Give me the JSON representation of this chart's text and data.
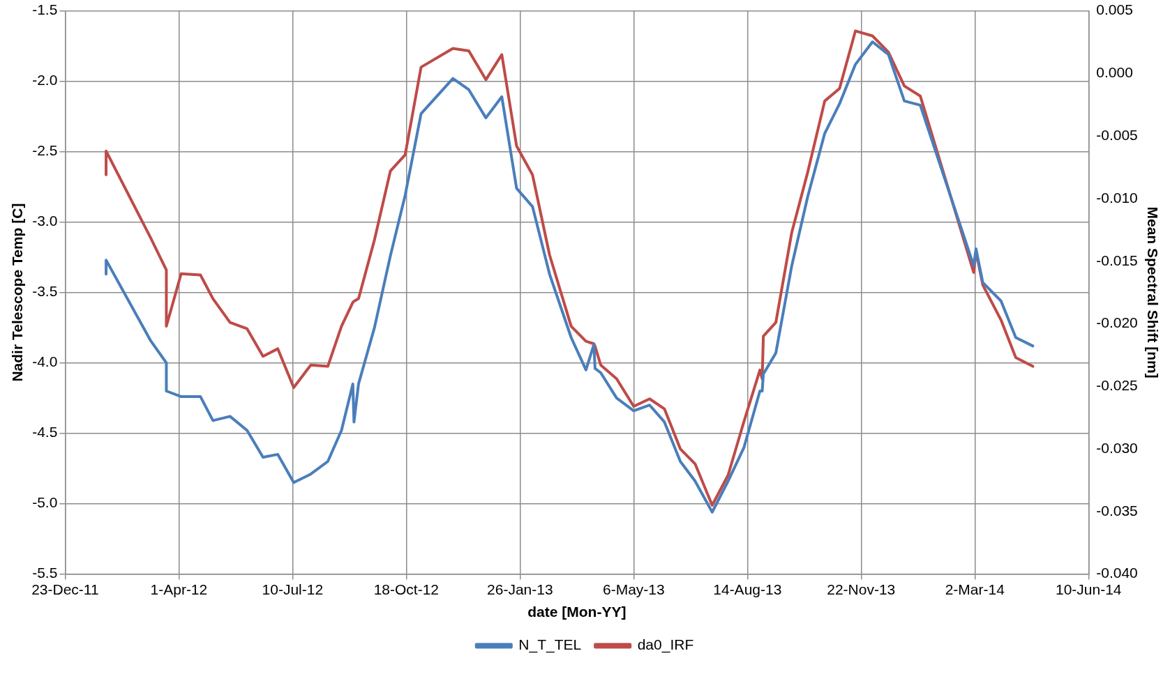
{
  "chart_data": {
    "type": "line",
    "xlabel": "date [Mon-YY]",
    "ylabel": "Nadir Telescope Temp [C]",
    "y2label": "Mean Spectral Shift [nm]",
    "x": [
      "2012-01-28",
      "2012-01-28",
      "2012-03-07",
      "2012-03-21",
      "2012-03-21",
      "2012-04-03",
      "2012-04-20",
      "2012-05-01",
      "2012-05-16",
      "2012-05-31",
      "2012-06-14",
      "2012-06-27",
      "2012-07-11",
      "2012-07-26",
      "2012-08-10",
      "2012-08-22",
      "2012-09-01",
      "2012-09-02",
      "2012-09-06",
      "2012-09-20",
      "2012-10-04",
      "2012-10-17",
      "2012-10-31",
      "2012-11-28",
      "2012-12-12",
      "2012-12-27",
      "2013-01-10",
      "2013-01-23",
      "2013-02-06",
      "2013-02-21",
      "2013-03-12",
      "2013-03-25",
      "2013-04-01",
      "2013-04-02",
      "2013-04-07",
      "2013-04-21",
      "2013-05-06",
      "2013-05-20",
      "2013-06-02",
      "2013-06-16",
      "2013-06-29",
      "2013-07-14",
      "2013-07-28",
      "2013-08-11",
      "2013-08-25",
      "2013-08-27",
      "2013-08-28",
      "2013-09-08",
      "2013-09-22",
      "2013-10-06",
      "2013-10-21",
      "2013-11-03",
      "2013-11-17",
      "2013-12-02",
      "2013-12-16",
      "2013-12-30",
      "2014-01-13",
      "2014-03-01",
      "2014-03-03",
      "2014-03-09",
      "2014-03-25",
      "2014-04-07",
      "2014-04-22"
    ],
    "series": [
      {
        "name": "N_T_TEL",
        "color": "#4a7ebb",
        "values": [
          -3.37,
          -3.27,
          -3.84,
          -4.0,
          -4.2,
          -4.24,
          -4.24,
          -4.41,
          -4.38,
          -4.48,
          -4.67,
          -4.65,
          -4.85,
          -4.79,
          -4.7,
          -4.48,
          -4.15,
          -4.42,
          -4.15,
          -3.75,
          -3.24,
          -2.81,
          -2.23,
          -1.98,
          -2.06,
          -2.26,
          -2.11,
          -2.76,
          -2.89,
          -3.37,
          -3.82,
          -4.05,
          -3.87,
          -4.04,
          -4.07,
          -4.25,
          -4.34,
          -4.3,
          -4.42,
          -4.7,
          -4.84,
          -5.06,
          -4.84,
          -4.6,
          -4.2,
          -4.2,
          -4.08,
          -3.93,
          -3.31,
          -2.82,
          -2.37,
          -2.16,
          -1.88,
          -1.72,
          -1.81,
          -2.14,
          -2.17,
          -3.31,
          -3.19,
          -3.43,
          -3.56,
          -3.82,
          -3.88
        ]
      },
      {
        "name": "da0_IRF",
        "color": "#be4b48",
        "axis": "y2",
        "values": [
          -0.0081,
          -0.0062,
          -0.0131,
          -0.0157,
          -0.0202,
          -0.016,
          -0.0161,
          -0.018,
          -0.0199,
          -0.0204,
          -0.0226,
          -0.022,
          -0.0251,
          -0.0233,
          -0.0234,
          -0.0202,
          -0.0183,
          -0.0182,
          -0.018,
          -0.0133,
          -0.0078,
          -0.0065,
          0.0005,
          0.002,
          0.0018,
          -0.0005,
          0.0015,
          -0.0058,
          -0.0081,
          -0.0145,
          -0.0202,
          -0.0214,
          -0.0216,
          -0.0218,
          -0.0233,
          -0.0244,
          -0.0266,
          -0.026,
          -0.0268,
          -0.03,
          -0.0312,
          -0.0345,
          -0.0321,
          -0.0278,
          -0.0237,
          -0.0244,
          -0.021,
          -0.0199,
          -0.0127,
          -0.0079,
          -0.0022,
          -0.0012,
          0.0034,
          0.003,
          0.0017,
          -0.001,
          -0.0018,
          -0.0159,
          -0.0142,
          -0.0169,
          -0.0197,
          -0.0227,
          -0.0234
        ]
      }
    ],
    "xlim": [
      "2011-12-23",
      "2014-06-10"
    ],
    "xticks": [
      {
        "value": "2011-12-23",
        "label": "23-Dec-11"
      },
      {
        "value": "2012-04-01",
        "label": "1-Apr-12"
      },
      {
        "value": "2012-07-10",
        "label": "10-Jul-12"
      },
      {
        "value": "2012-10-18",
        "label": "18-Oct-12"
      },
      {
        "value": "2013-01-26",
        "label": "26-Jan-13"
      },
      {
        "value": "2013-05-06",
        "label": "6-May-13"
      },
      {
        "value": "2013-08-14",
        "label": "14-Aug-13"
      },
      {
        "value": "2013-11-22",
        "label": "22-Nov-13"
      },
      {
        "value": "2014-03-02",
        "label": "2-Mar-14"
      },
      {
        "value": "2014-06-10",
        "label": "10-Jun-14"
      }
    ],
    "ylim": [
      -5.5,
      -1.5
    ],
    "yticks": [
      {
        "value": -5.5,
        "label": "-5.5"
      },
      {
        "value": -5,
        "label": "-5.0"
      },
      {
        "value": -4.5,
        "label": "-4.5"
      },
      {
        "value": -4,
        "label": "-4.0"
      },
      {
        "value": -3.5,
        "label": "-3.5"
      },
      {
        "value": -3,
        "label": "-3.0"
      },
      {
        "value": -2.5,
        "label": "-2.5"
      },
      {
        "value": -2,
        "label": "-2.0"
      },
      {
        "value": -1.5,
        "label": "-1.5"
      }
    ],
    "y2lim": [
      -0.04,
      0.005
    ],
    "y2ticks": [
      {
        "value": -0.04,
        "label": "-0.040"
      },
      {
        "value": -0.035,
        "label": "-0.035"
      },
      {
        "value": -0.03,
        "label": "-0.030"
      },
      {
        "value": -0.025,
        "label": "-0.025"
      },
      {
        "value": -0.02,
        "label": "-0.020"
      },
      {
        "value": -0.015,
        "label": "-0.015"
      },
      {
        "value": -0.01,
        "label": "-0.010"
      },
      {
        "value": -0.005,
        "label": "-0.005"
      },
      {
        "value": 0,
        "label": "0.000"
      },
      {
        "value": 0.005,
        "label": "0.005"
      }
    ],
    "grid": true,
    "legend": "bottom",
    "marker": "none",
    "line_style": "solid"
  }
}
